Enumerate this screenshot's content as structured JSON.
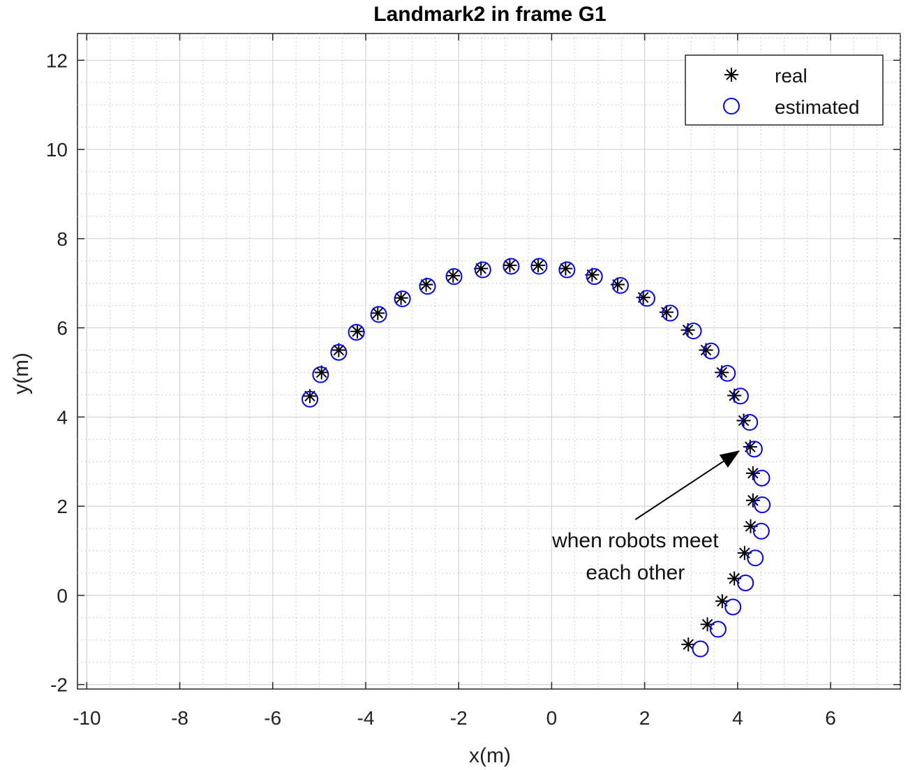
{
  "chart_data": {
    "type": "scatter",
    "title": "Landmark2 in frame G1",
    "xlabel": "x(m)",
    "ylabel": "y(m)",
    "xlim": [
      -10.2,
      7.5
    ],
    "ylim": [
      -2.1,
      12.6
    ],
    "xticks": [
      -10,
      -8,
      -6,
      -4,
      -2,
      0,
      2,
      4,
      6
    ],
    "yticks": [
      -2,
      0,
      2,
      4,
      6,
      8,
      10,
      12
    ],
    "xtick_labels": [
      "-10",
      "-8",
      "-6",
      "-4",
      "-2",
      "0",
      "2",
      "4",
      "6"
    ],
    "ytick_labels": [
      "-2",
      "0",
      "2",
      "4",
      "6",
      "8",
      "10",
      "12"
    ],
    "x_minor_step": 0.5,
    "y_minor_step": 0.5,
    "grid": true,
    "legend_position": "top-right",
    "series": [
      {
        "name": "real",
        "marker": "asterisk",
        "color": "#000000",
        "x": [
          -5.2,
          -4.95,
          -4.58,
          -4.18,
          -3.74,
          -3.24,
          -2.7,
          -2.12,
          -1.52,
          -0.9,
          -0.29,
          0.3,
          0.87,
          1.42,
          1.97,
          2.47,
          2.93,
          3.32,
          3.66,
          3.93,
          4.13,
          4.27,
          4.33,
          4.33,
          4.28,
          4.15,
          3.93,
          3.67,
          3.35,
          2.94
        ],
        "y": [
          4.47,
          5.0,
          5.5,
          5.92,
          6.33,
          6.67,
          6.97,
          7.17,
          7.33,
          7.4,
          7.4,
          7.33,
          7.19,
          6.97,
          6.68,
          6.35,
          5.95,
          5.5,
          5.0,
          4.48,
          3.92,
          3.33,
          2.74,
          2.13,
          1.55,
          0.95,
          0.38,
          -0.13,
          -0.65,
          -1.1
        ]
      },
      {
        "name": "estimated",
        "marker": "circle",
        "color": "#0000ff",
        "x": [
          -5.2,
          -4.97,
          -4.58,
          -4.2,
          -3.72,
          -3.21,
          -2.67,
          -2.1,
          -1.48,
          -0.87,
          -0.27,
          0.33,
          0.92,
          1.48,
          2.05,
          2.55,
          3.05,
          3.43,
          3.78,
          4.06,
          4.26,
          4.36,
          4.52,
          4.53,
          4.51,
          4.38,
          4.17,
          3.9,
          3.58,
          3.2
        ],
        "y": [
          4.4,
          4.95,
          5.45,
          5.9,
          6.3,
          6.65,
          6.93,
          7.15,
          7.3,
          7.38,
          7.38,
          7.3,
          7.15,
          6.95,
          6.66,
          6.33,
          5.93,
          5.48,
          4.98,
          4.47,
          3.88,
          3.28,
          2.63,
          2.03,
          1.44,
          0.84,
          0.28,
          -0.26,
          -0.76,
          -1.2
        ]
      }
    ],
    "annotation": {
      "lines": [
        "when robots meet",
        "each other"
      ],
      "from": [
        1.8,
        1.7
      ],
      "to": [
        4.05,
        3.25
      ]
    }
  }
}
